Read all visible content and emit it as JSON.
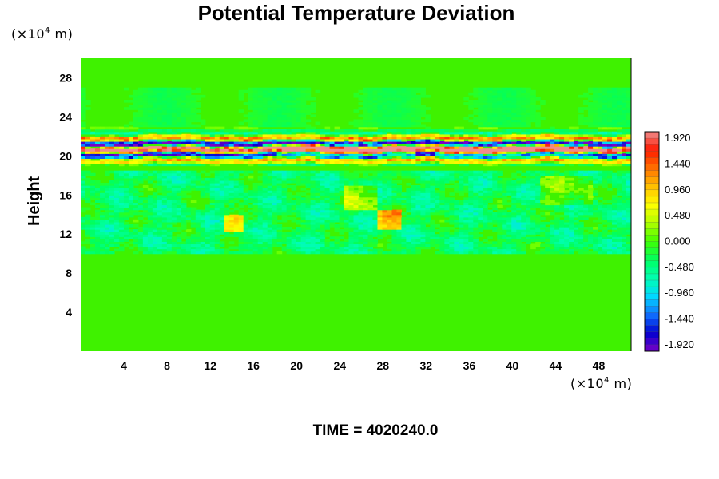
{
  "chart_data": {
    "type": "heatmap",
    "title": "Potential Temperature Deviation",
    "xlabel": "",
    "ylabel": "Height",
    "x_unit": {
      "prefix": "(×10",
      "exp": "4",
      "suffix": " m)"
    },
    "y_unit": {
      "prefix": "(×10",
      "exp": "4",
      "suffix": " m)"
    },
    "xlim": [
      0,
      51
    ],
    "ylim": [
      0,
      30
    ],
    "xticks": [
      4,
      8,
      12,
      16,
      20,
      24,
      28,
      32,
      36,
      40,
      44,
      48
    ],
    "yticks": [
      4,
      8,
      12,
      16,
      20,
      24,
      28
    ],
    "colorbar": {
      "range": [
        -2.04,
        2.04
      ],
      "labels": [
        "1.920",
        "1.440",
        "0.960",
        "0.480",
        "0.000",
        "-0.480",
        "-0.960",
        "-1.440",
        "-1.920"
      ],
      "label_values": [
        1.92,
        1.44,
        0.96,
        0.48,
        0.0,
        -0.48,
        -0.96,
        -1.44,
        -1.92
      ],
      "colors": [
        "#7a00c8",
        "#0000d0",
        "#1070ff",
        "#00d8ff",
        "#00ffb0",
        "#00ff60",
        "#40ff00",
        "#b0ff00",
        "#ffff00",
        "#ffc000",
        "#ff7000",
        "#ff1a00",
        "#f08c8c"
      ]
    },
    "features": [
      {
        "x_range": [
          0,
          51
        ],
        "y_range": [
          0,
          10
        ],
        "value": 0.0,
        "description": "uniform"
      },
      {
        "x_range": [
          0,
          51
        ],
        "y_range": [
          10,
          18
        ],
        "value": -0.2,
        "description": "patchy weak perturbations"
      },
      {
        "x_range": [
          0,
          51
        ],
        "y_range": [
          19.5,
          22.5
        ],
        "value": 1.9,
        "description": "strong alternating band"
      },
      {
        "x_range": [
          0,
          51
        ],
        "y_range": [
          23,
          30
        ],
        "value": 0.0,
        "description": "near zero"
      }
    ]
  },
  "footer": {
    "label": "TIME",
    "value": "4020240.0"
  }
}
